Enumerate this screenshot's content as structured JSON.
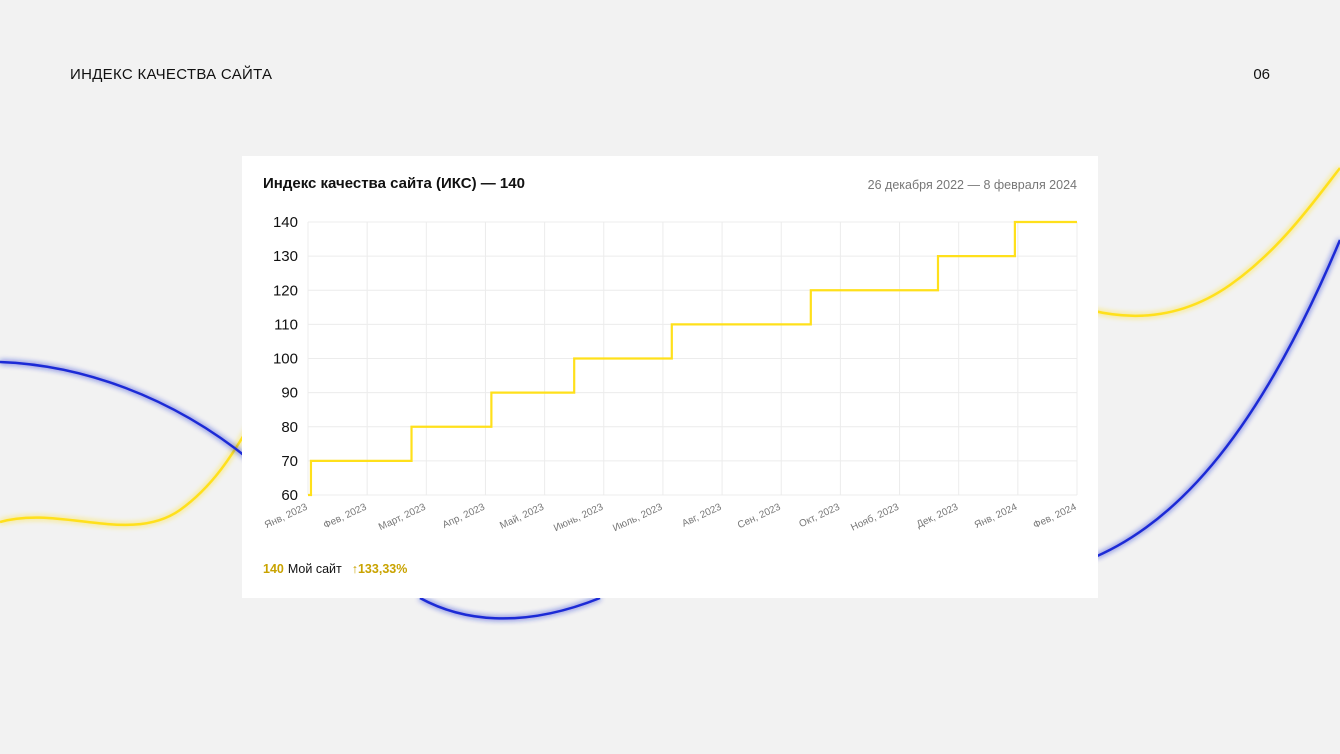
{
  "slide": {
    "title": "ИНДЕКС КАЧЕСТВА САЙТА",
    "page_number": "06"
  },
  "card": {
    "title": "Индекс качества сайта (ИКС) — 140",
    "date_range": "26 декабря 2022 — 8 февраля 2024"
  },
  "legend": {
    "value": "140",
    "name": "Мой сайт",
    "change": "↑133,33%"
  },
  "colors": {
    "line": "#ffe01b",
    "wave_yellow": "#ffe01b",
    "wave_blue": "#1a2bd6",
    "grid": "#ececec",
    "accent_text": "#c9a300"
  },
  "chart_data": {
    "type": "line",
    "step": true,
    "x_categories": [
      "Янв, 2023",
      "Фев, 2023",
      "Март, 2023",
      "Апр, 2023",
      "Май, 2023",
      "Июнь, 2023",
      "Июль, 2023",
      "Авг, 2023",
      "Сен, 2023",
      "Окт, 2023",
      "Нояб, 2023",
      "Дек, 2023",
      "Янв, 2024",
      "Фев, 2024"
    ],
    "y_ticks": [
      60,
      70,
      80,
      90,
      100,
      110,
      120,
      130,
      140
    ],
    "ylim": [
      60,
      140
    ],
    "grid": true,
    "series": [
      {
        "name": "Мой сайт",
        "points": [
          {
            "x": 0.0,
            "y": 60
          },
          {
            "x": 0.05,
            "y": 70
          },
          {
            "x": 1.75,
            "y": 80
          },
          {
            "x": 3.1,
            "y": 90
          },
          {
            "x": 4.5,
            "y": 100
          },
          {
            "x": 6.15,
            "y": 110
          },
          {
            "x": 8.5,
            "y": 120
          },
          {
            "x": 10.65,
            "y": 130
          },
          {
            "x": 11.95,
            "y": 140
          },
          {
            "x": 13.0,
            "y": 140
          }
        ]
      }
    ]
  }
}
